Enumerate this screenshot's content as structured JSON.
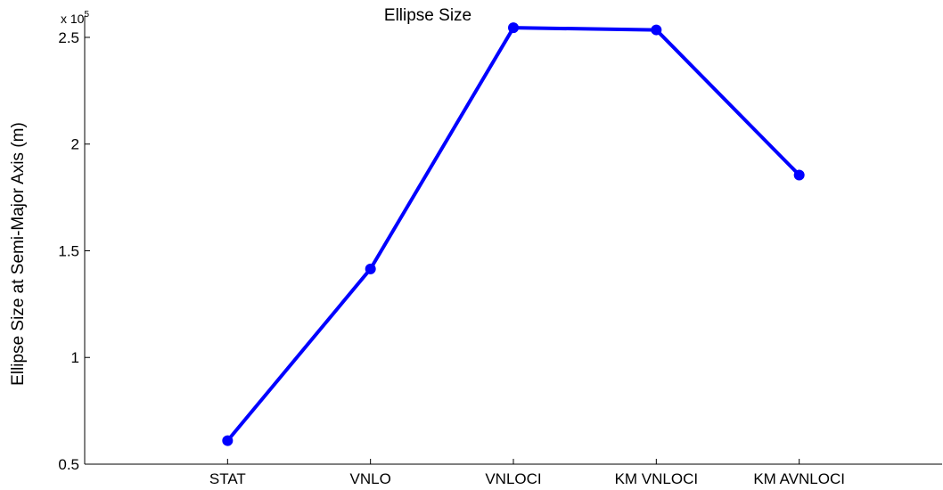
{
  "chart_data": {
    "type": "line",
    "title": "Ellipse Size",
    "xlabel": "",
    "ylabel": "Ellipse Size at Semi-Major Axis (m)",
    "exponent_label": {
      "base": "x 10",
      "power": "5"
    },
    "categories": [
      "STAT",
      "VNLO",
      "VNLOCI",
      "KM VNLOCI",
      "KM AVNLOCI"
    ],
    "x_range": [
      0,
      6
    ],
    "x_positions": [
      1,
      2,
      3,
      4,
      5
    ],
    "y_scale_factor": 100000,
    "ylim": [
      0.5,
      2.6
    ],
    "yticks": [
      0.5,
      1,
      1.5,
      2,
      2.5
    ],
    "ytick_labels": [
      "0.5",
      "1",
      "1.5",
      "2",
      "2.5"
    ],
    "grid": false,
    "series": [
      {
        "color": "#0000ff",
        "values": [
          0.61,
          1.415,
          2.545,
          2.535,
          1.855
        ]
      }
    ]
  }
}
